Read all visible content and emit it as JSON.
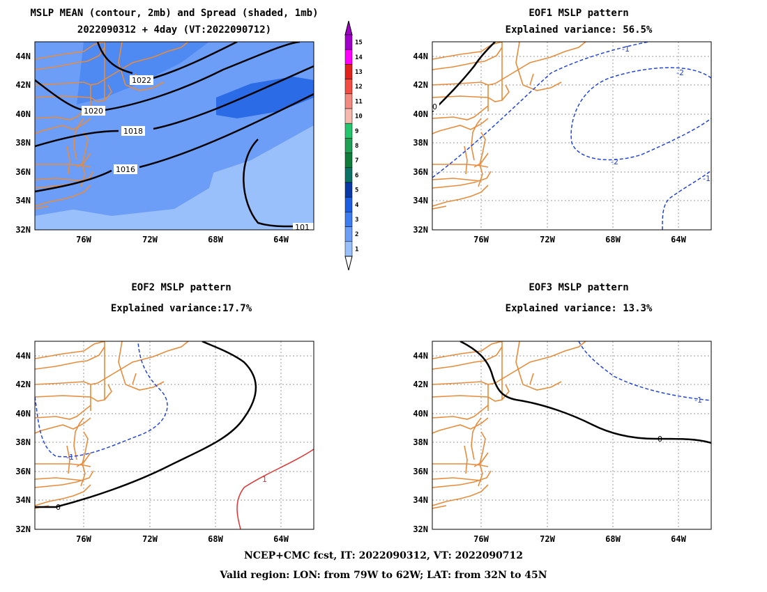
{
  "panels": [
    {
      "id": "mean",
      "title_line1": "MSLP MEAN (contour, 2mb) and Spread (shaded, 1mb)",
      "title_line2": "2022090312 + 4day (VT:2022090712)",
      "contour_labels": [
        "1022",
        "1020",
        "1018",
        "1016",
        "101"
      ]
    },
    {
      "id": "eof1",
      "title_line1": "EOF1 MSLP pattern",
      "title_line2": "Explained variance: 56.5%",
      "contour_labels": [
        "0",
        "-1",
        "-2",
        "-2",
        "-1"
      ]
    },
    {
      "id": "eof2",
      "title_line1": "EOF2 MSLP pattern",
      "title_line2": "Explained variance:17.7%",
      "contour_labels": [
        "0",
        "-1",
        "1"
      ]
    },
    {
      "id": "eof3",
      "title_line1": "EOF3 MSLP pattern",
      "title_line2": "Explained variance: 13.3%",
      "contour_labels": [
        "0",
        "-1"
      ]
    }
  ],
  "axes": {
    "lat_labels": [
      "44N",
      "42N",
      "40N",
      "38N",
      "36N",
      "34N",
      "32N"
    ],
    "lon_labels": [
      "76W",
      "72W",
      "68W",
      "64W"
    ]
  },
  "colorbar": {
    "labels": [
      "15",
      "14",
      "13",
      "12",
      "11",
      "10",
      "9",
      "8",
      "7",
      "6",
      "5",
      "4",
      "3",
      "2",
      "1"
    ],
    "colors": [
      "#a000c8",
      "#ff00ff",
      "#e1211a",
      "#f24d43",
      "#f28a80",
      "#f6b9ae",
      "#25c56d",
      "#1ea055",
      "#0f7d3a",
      "#0a7366",
      "#0839a6",
      "#1c5ee1",
      "#3c7df0",
      "#6d9ef7",
      "#99c0fa"
    ]
  },
  "footer": {
    "line1": "NCEP+CMC fcst, IT: 2022090312, VT: 2022090712",
    "line2": "Valid region: LON: from 79W to 62W; LAT: from 32N to 45N"
  }
}
